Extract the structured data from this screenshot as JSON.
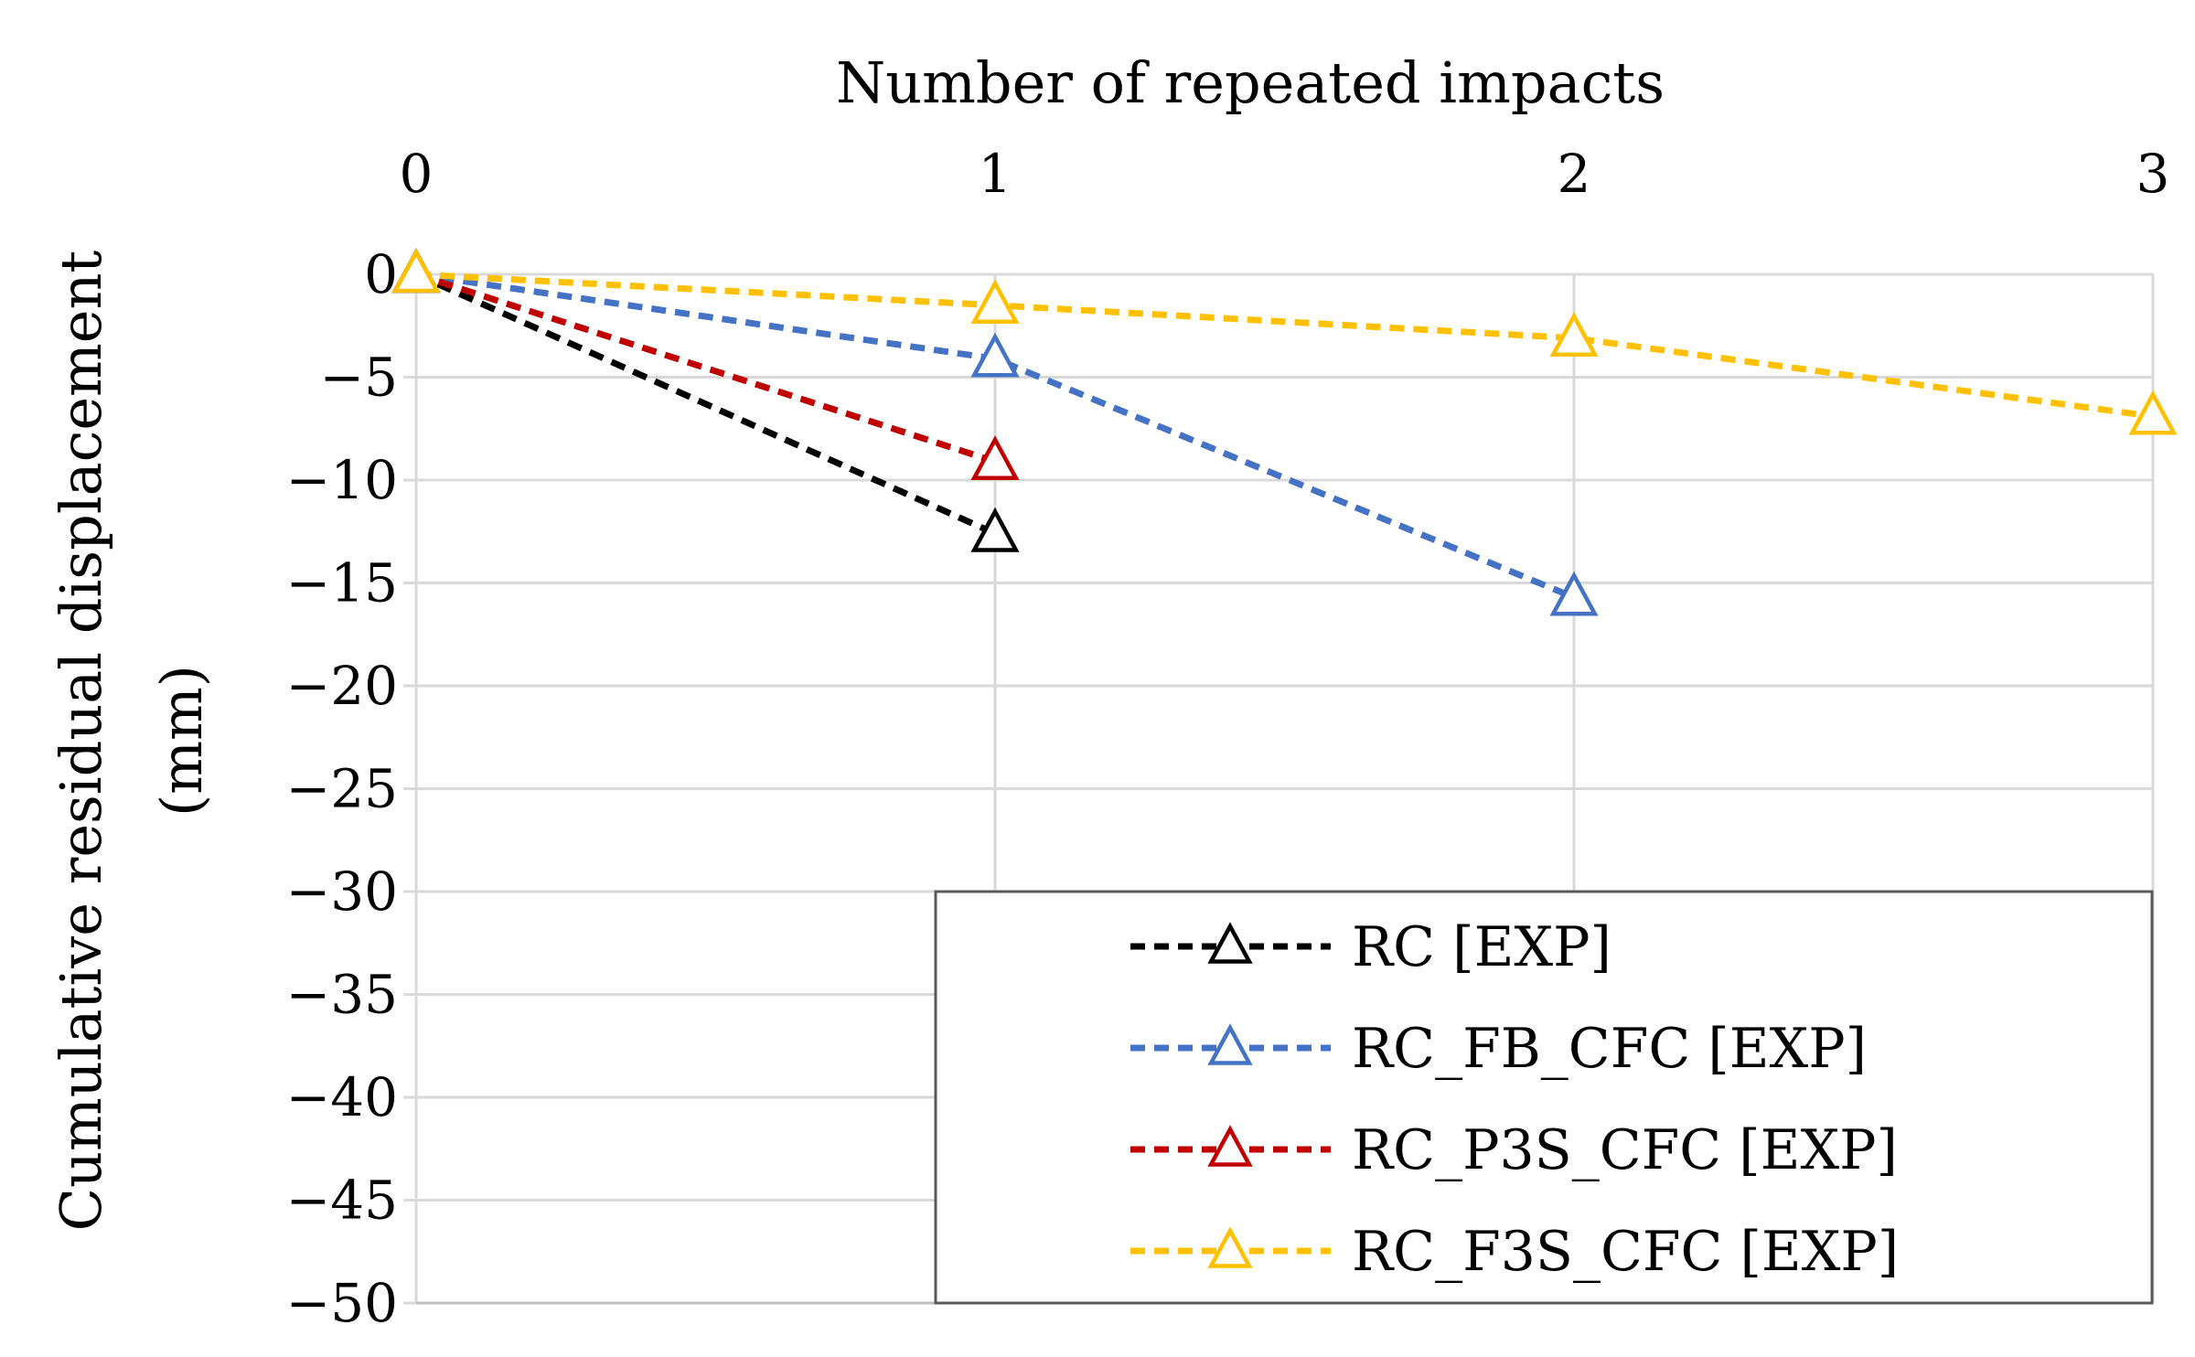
{
  "chart_data": {
    "type": "line",
    "xlabel": "Number of repeated impacts",
    "ylabel": "Cumulative residual displacement",
    "ylabel_unit": "(mm)",
    "x_axis_position": "top",
    "xlim": [
      0,
      3
    ],
    "ylim": [
      -50,
      0
    ],
    "x_ticks": [
      0,
      1,
      2,
      3
    ],
    "y_ticks": [
      0,
      -5,
      -10,
      -15,
      -20,
      -25,
      -30,
      -35,
      -40,
      -45,
      -50
    ],
    "x_tick_labels": [
      "0",
      "1",
      "2",
      "3"
    ],
    "y_tick_labels": [
      "0",
      "−5",
      "−10",
      "−15",
      "−20",
      "−25",
      "−30",
      "−35",
      "−40",
      "−45",
      "−50"
    ],
    "grid": true,
    "legend_position": "bottom-right",
    "series": [
      {
        "name": "RC [EXP]",
        "color": "#000000",
        "marker": "triangle",
        "line_style": "dashed",
        "x": [
          0,
          1
        ],
        "values": [
          0,
          -12.6
        ]
      },
      {
        "name": "RC_FB_CFC [EXP]",
        "color": "#4472C4",
        "marker": "triangle",
        "line_style": "dashed",
        "x": [
          0,
          1,
          2
        ],
        "values": [
          0,
          -4.1,
          -15.7
        ]
      },
      {
        "name": "RC_P3S_CFC [EXP]",
        "color": "#C00000",
        "marker": "triangle",
        "line_style": "dashed",
        "x": [
          0,
          1
        ],
        "values": [
          0,
          -9.1
        ]
      },
      {
        "name": "RC_F3S_CFC [EXP]",
        "color": "#FFC000",
        "marker": "triangle",
        "line_style": "dashed",
        "x": [
          0,
          1,
          2,
          3
        ],
        "values": [
          0,
          -1.5,
          -3.1,
          -6.9
        ]
      }
    ]
  }
}
